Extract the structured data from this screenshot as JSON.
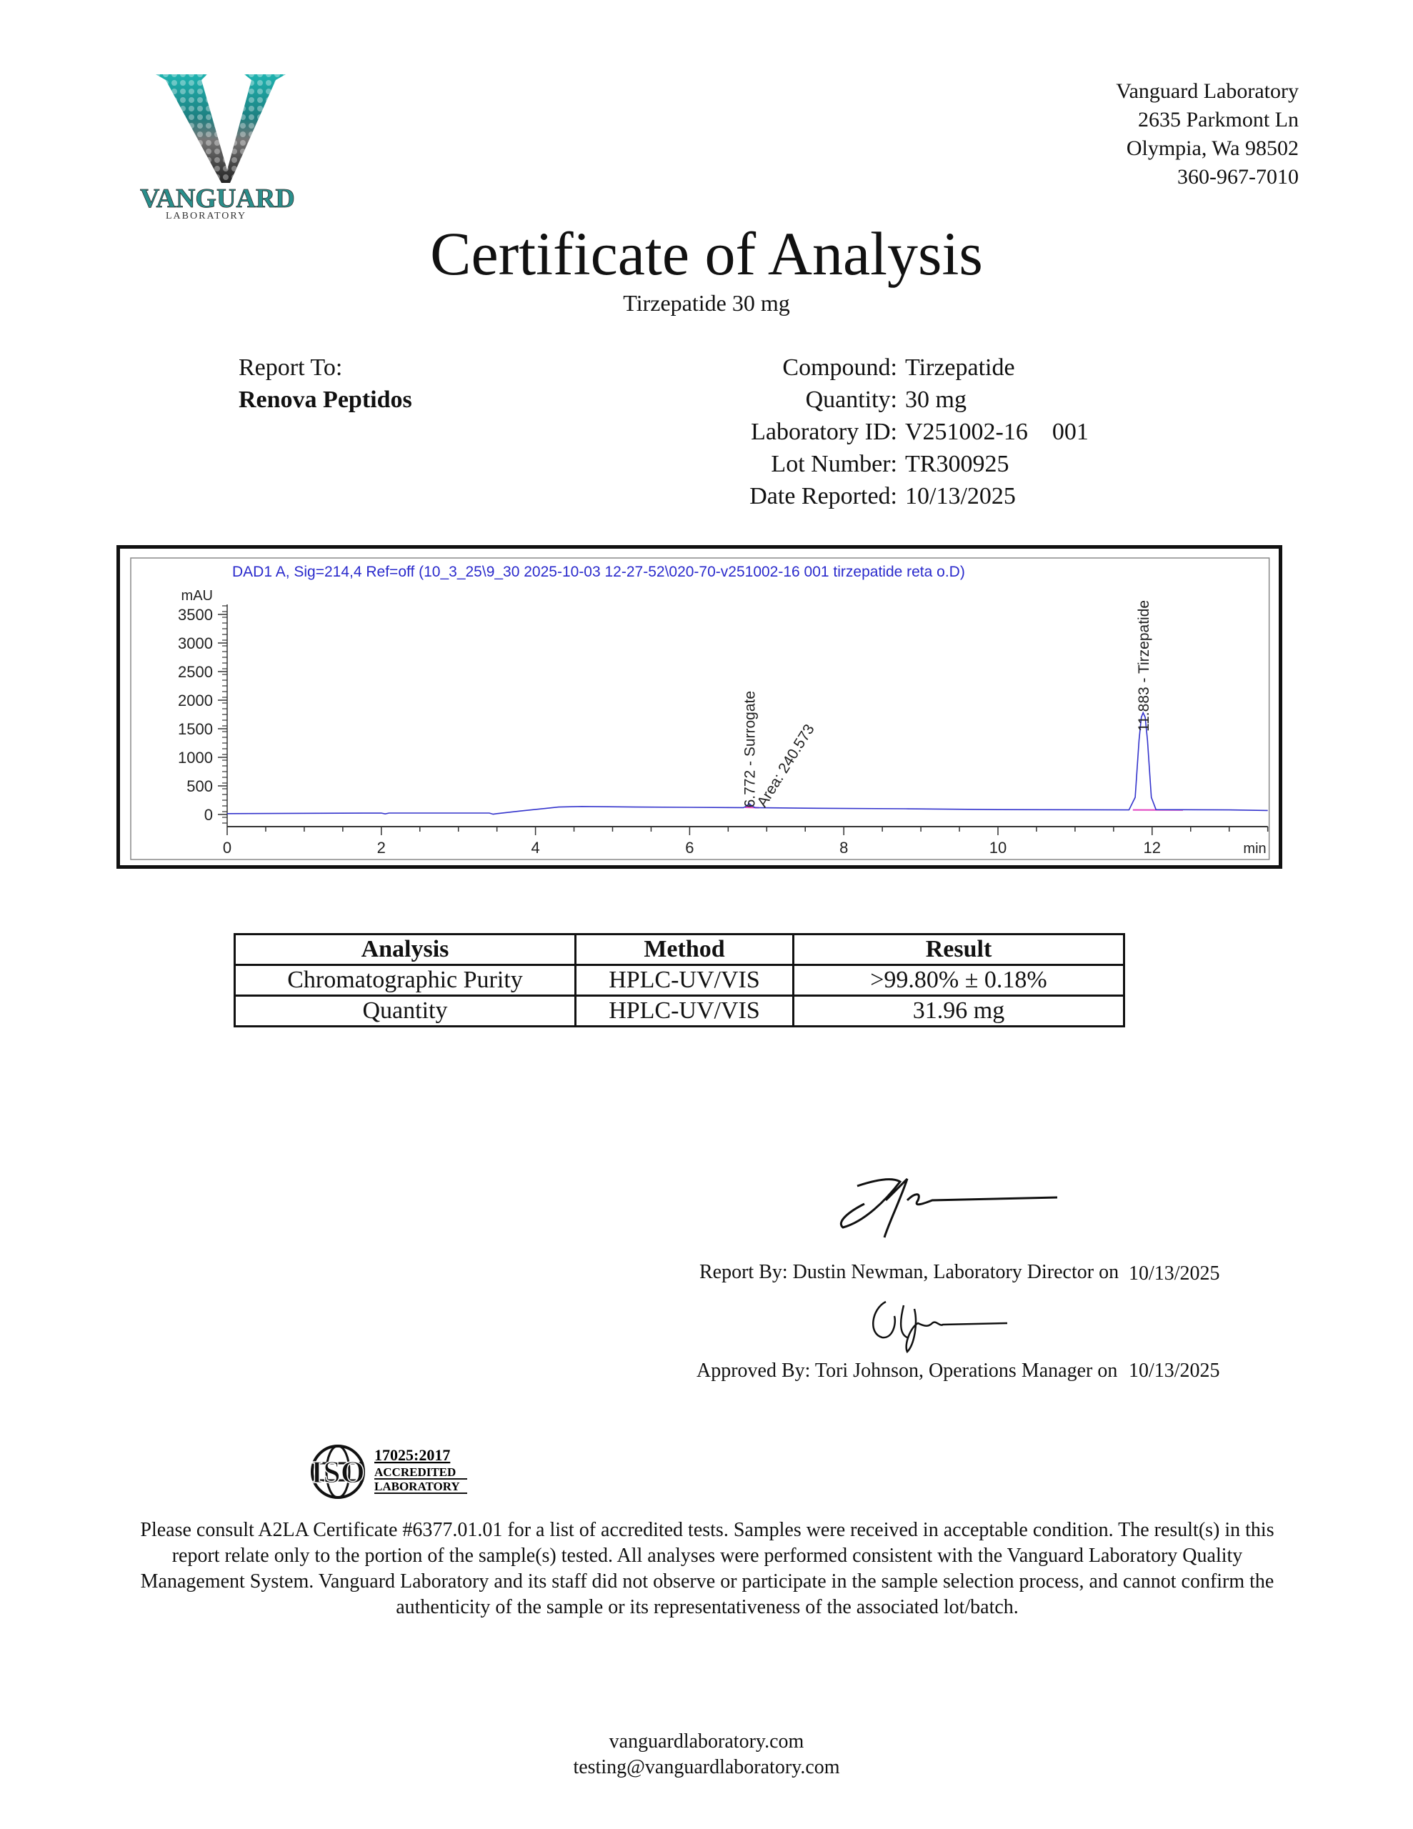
{
  "logo": {
    "letter": "V",
    "name": "VANGUARD",
    "sub": "LABORATORY"
  },
  "address": {
    "name": "Vanguard Laboratory",
    "street": "2635 Parkmont Ln",
    "city": "Olympia, Wa 98502",
    "phone": "360-967-7010"
  },
  "title": "Certificate of Analysis",
  "subtitle": "Tirzepatide 30 mg",
  "report_to": {
    "label": "Report To:",
    "client": "Renova Peptidos"
  },
  "fields": [
    {
      "label": "Compound:",
      "value": "Tirzepatide"
    },
    {
      "label": "Quantity:",
      "value": "30 mg"
    },
    {
      "label": "Laboratory ID:",
      "value": "V251002-16    001"
    },
    {
      "label": "Lot Number:",
      "value": "TR300925"
    },
    {
      "label": "Date Reported:",
      "value": "10/13/2025"
    }
  ],
  "chart_data": {
    "type": "line",
    "title": "DAD1 A, Sig=214,4 Ref=off (10_3_25\\9_30 2025-10-03 12-27-52\\020-70-v251002-16 001 tirzepatide reta o.D)",
    "xlabel": "min",
    "ylabel": "mAU",
    "xlim": [
      0,
      13.5
    ],
    "ylim": [
      -200,
      3800
    ],
    "xticks": [
      0,
      2,
      4,
      6,
      8,
      10,
      12
    ],
    "yticks": [
      0,
      500,
      1000,
      1500,
      2000,
      2500,
      3000,
      3500
    ],
    "grid": false,
    "line_color": "#3333cc",
    "title_color": "#2a2acc",
    "series": [
      {
        "x": [
          0,
          2,
          2.05,
          2.1,
          3.4,
          3.45,
          3.5,
          3.8,
          4.3,
          4.6,
          5.3,
          6.0,
          6.7,
          6.74,
          6.772,
          6.81,
          6.85,
          7.5,
          8.8,
          10.0,
          11.7,
          11.78,
          11.83,
          11.86,
          11.883,
          11.91,
          11.94,
          11.99,
          12.05,
          13.0,
          13.5
        ],
        "y": [
          15,
          25,
          10,
          25,
          25,
          5,
          15,
          60,
          130,
          140,
          130,
          125,
          120,
          150,
          190,
          150,
          120,
          110,
          100,
          85,
          80,
          300,
          1300,
          1700,
          1780,
          1700,
          1300,
          300,
          85,
          80,
          70
        ]
      }
    ],
    "annotations": [
      {
        "x": 6.772,
        "text": "6.772 -  Surrogate"
      },
      {
        "x": 6.772,
        "text": "Area: 240.573"
      },
      {
        "x": 11.883,
        "text": "11.883 -  Tirzepatide"
      }
    ]
  },
  "results_table": {
    "headers": [
      "Analysis",
      "Method",
      "Result"
    ],
    "rows": [
      [
        "Chromatographic Purity",
        "HPLC-UV/VIS",
        ">99.80% ± 0.18%"
      ],
      [
        "Quantity",
        "HPLC-UV/VIS",
        "31.96 mg"
      ]
    ]
  },
  "signatures": {
    "report_by": "Report By: Dustin Newman, Laboratory Director on",
    "report_date": "10/13/2025",
    "approved_by": "Approved By: Tori Johnson, Operations Manager on",
    "approved_date": "10/13/2025"
  },
  "iso": {
    "mark": "ISO",
    "standard": "17025:2017",
    "line1": "ACCREDITED",
    "line2": "LABORATORY"
  },
  "disclaimer": "Please consult A2LA Certificate #6377.01.01 for a list of accredited tests. Samples were received in acceptable condition. The result(s) in this report relate only to the portion of the sample(s) tested. All analyses were performed consistent with the Vanguard Laboratory Quality Management System. Vanguard Laboratory and its staff did not observe or participate in the sample selection process, and cannot confirm the authenticity of the sample or its representativeness of the associated lot/batch.",
  "footer": {
    "website": "vanguardlaboratory.com",
    "email": "testing@vanguardlaboratory.com"
  }
}
